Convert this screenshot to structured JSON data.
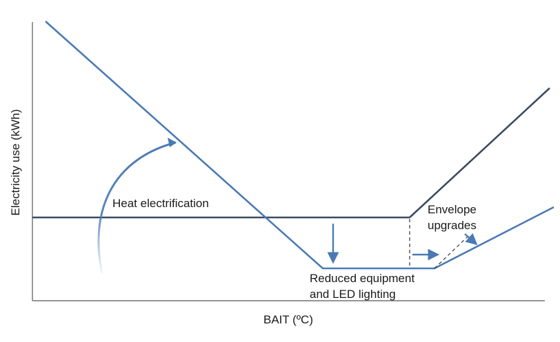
{
  "diagram": {
    "y_axis_label": "Electricity use (kWh)",
    "x_axis_label": "BAIT (ºC)",
    "annotations": {
      "heat_electrification": "Heat electrification",
      "envelope_line1": "Envelope",
      "envelope_line2": "upgrades",
      "reduced_line1": "Reduced equipment",
      "reduced_line2": "and LED lighting"
    }
  },
  "colors": {
    "baseline": "#3b4a63",
    "improved": "#4a7ab3",
    "axis": "#555555",
    "text": "#1a1a1a"
  }
}
